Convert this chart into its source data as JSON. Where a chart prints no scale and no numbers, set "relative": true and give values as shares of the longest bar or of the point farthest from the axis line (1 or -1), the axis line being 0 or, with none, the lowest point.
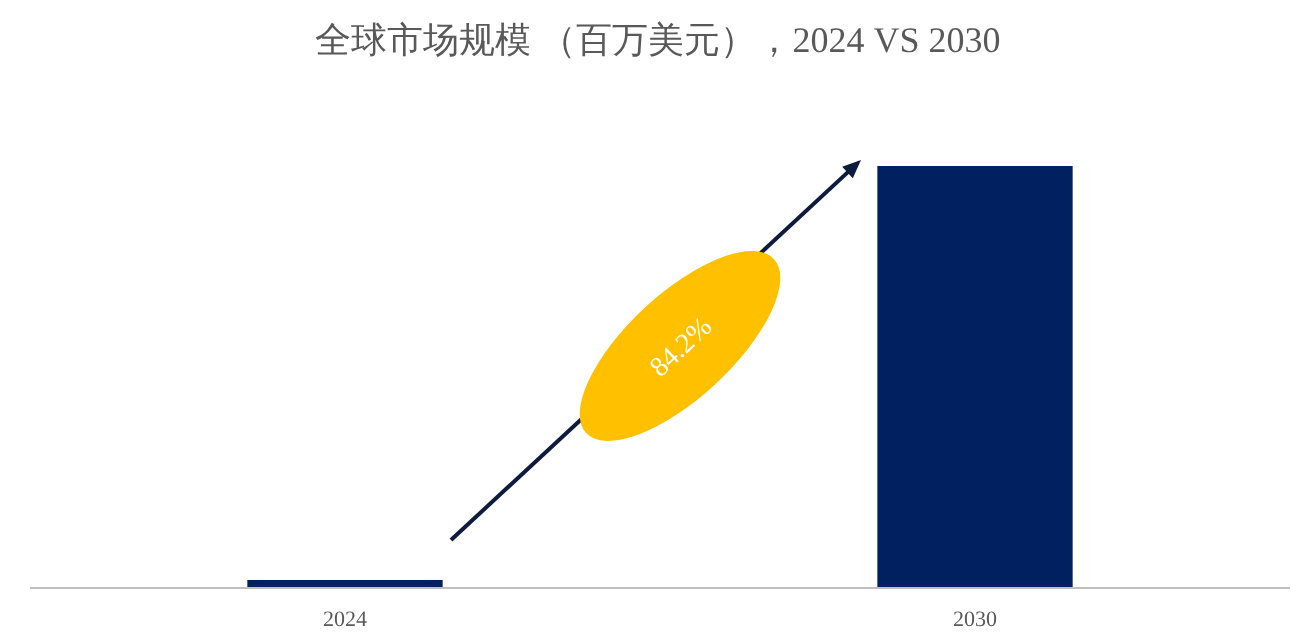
{
  "chart_data": {
    "type": "bar",
    "title": "全球市场规模 （百万美元），2024 VS 2030",
    "categories": [
      "2024",
      "2030"
    ],
    "values": [
      0.019,
      1
    ],
    "color": "#002060",
    "relative": true,
    "annotations": [
      "84.2%"
    ]
  }
}
